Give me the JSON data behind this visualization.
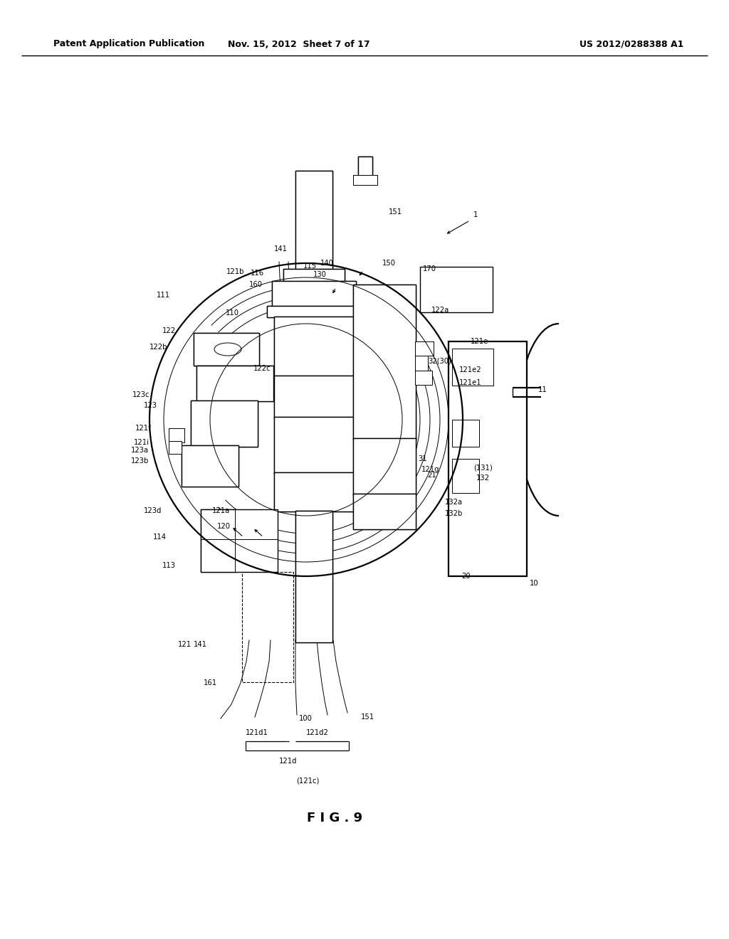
{
  "background_color": "#ffffff",
  "header_left": "Patent Application Publication",
  "header_mid": "Nov. 15, 2012  Sheet 7 of 17",
  "header_right": "US 2012/0288388 A1",
  "figure_label": "F I G . 9",
  "title_color": "#000000",
  "line_color": "#000000"
}
